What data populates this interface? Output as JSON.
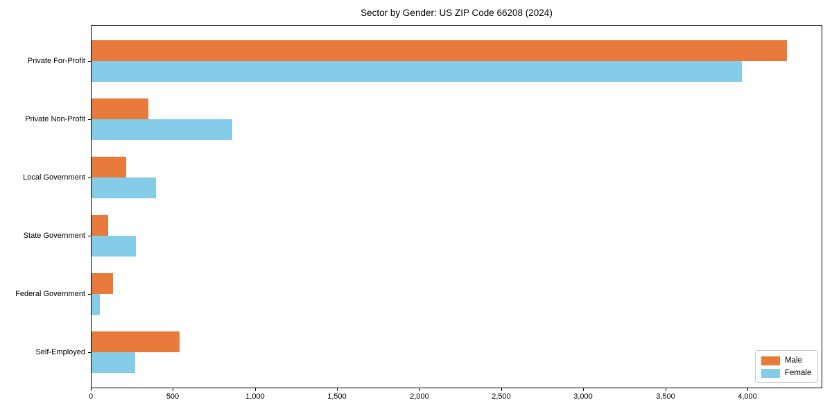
{
  "chart_data": {
    "type": "bar",
    "orientation": "horizontal",
    "title": "Sector by Gender: US ZIP Code 66208 (2024)",
    "categories": [
      "Private For-Profit",
      "Private Non-Profit",
      "Local Government",
      "State Government",
      "Federal Government",
      "Self-Employed"
    ],
    "series": [
      {
        "name": "Male",
        "color": "#e87a3c",
        "values": [
          4240,
          350,
          215,
          105,
          135,
          540
        ]
      },
      {
        "name": "Female",
        "color": "#85cce8",
        "values": [
          3965,
          860,
          395,
          275,
          55,
          270
        ]
      }
    ],
    "xlabel": "",
    "ylabel": "",
    "xlim": [
      0,
      4455
    ],
    "xticks": [
      0,
      500,
      1000,
      1500,
      2000,
      2500,
      3000,
      3500,
      4000
    ],
    "xtick_labels": [
      "0",
      "500",
      "1,000",
      "1,500",
      "2,000",
      "2,500",
      "3,000",
      "3,500",
      "4,000"
    ],
    "legend": {
      "position": "lower-right",
      "entries": [
        "Male",
        "Female"
      ]
    },
    "grid": false,
    "background_color": "#ffffff",
    "plot_border_color": "#000000"
  }
}
